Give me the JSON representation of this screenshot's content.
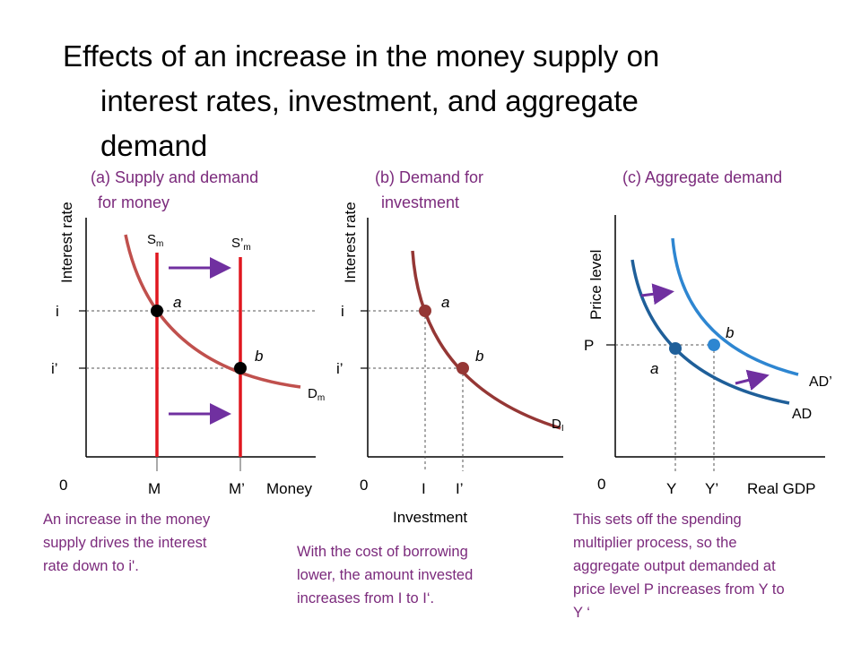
{
  "title": {
    "line1": "Effects of an increase in the money supply on",
    "line2": "interest rates, investment, and aggregate",
    "line3": "demand"
  },
  "panel_a": {
    "title_line1": "(a) Supply and demand",
    "title_line2": "for money",
    "y_axis_label": "Interest rate",
    "x_axis_label": "Money",
    "origin": "0",
    "tick_i": "i",
    "tick_i_prime": "i’",
    "tick_M": "M",
    "tick_M_prime": "M’",
    "supply_label": "S",
    "supply_sub": "m",
    "supply_prime_label": "S’",
    "supply_prime_sub": "m",
    "demand_label": "D",
    "demand_sub": "m",
    "point_a": "a",
    "point_b": "b",
    "note": [
      "An increase in the money",
      "supply drives the interest",
      "rate down to i'."
    ]
  },
  "panel_b": {
    "title_line1": "(b) Demand for",
    "title_line2": "investment",
    "y_axis_label": "Interest rate",
    "x_axis_label": "Investment",
    "origin": "0",
    "tick_i": "i",
    "tick_i_prime": "i’",
    "tick_I": "I",
    "tick_I_prime": "I’",
    "demand_label": "D",
    "demand_sub": "I",
    "point_a": "a",
    "point_b": "b",
    "note": [
      "With the cost of borrowing",
      "lower, the amount invested",
      "increases from I to I‘."
    ]
  },
  "panel_c": {
    "title": "(c) Aggregate demand",
    "y_axis_label": "Price level",
    "x_axis_label": "Real GDP",
    "origin": "0",
    "tick_P": "P",
    "tick_Y": "Y",
    "tick_Y_prime": "Y’",
    "ad_label": "AD",
    "ad_prime_label": "AD’",
    "point_a": "a",
    "point_b": "b",
    "note": [
      "This sets off the spending",
      "multiplier process, so the",
      "aggregate output demanded at",
      "price level P increases from Y to",
      "Y ‘"
    ]
  },
  "colors": {
    "money_demand": "#c0504d",
    "money_supply": "#e0171f",
    "investment_demand": "#953735",
    "ad": "#1f5f99",
    "ad_prime": "#2e86d1",
    "arrow": "#7030a0",
    "note_text": "#7b2a7c"
  }
}
